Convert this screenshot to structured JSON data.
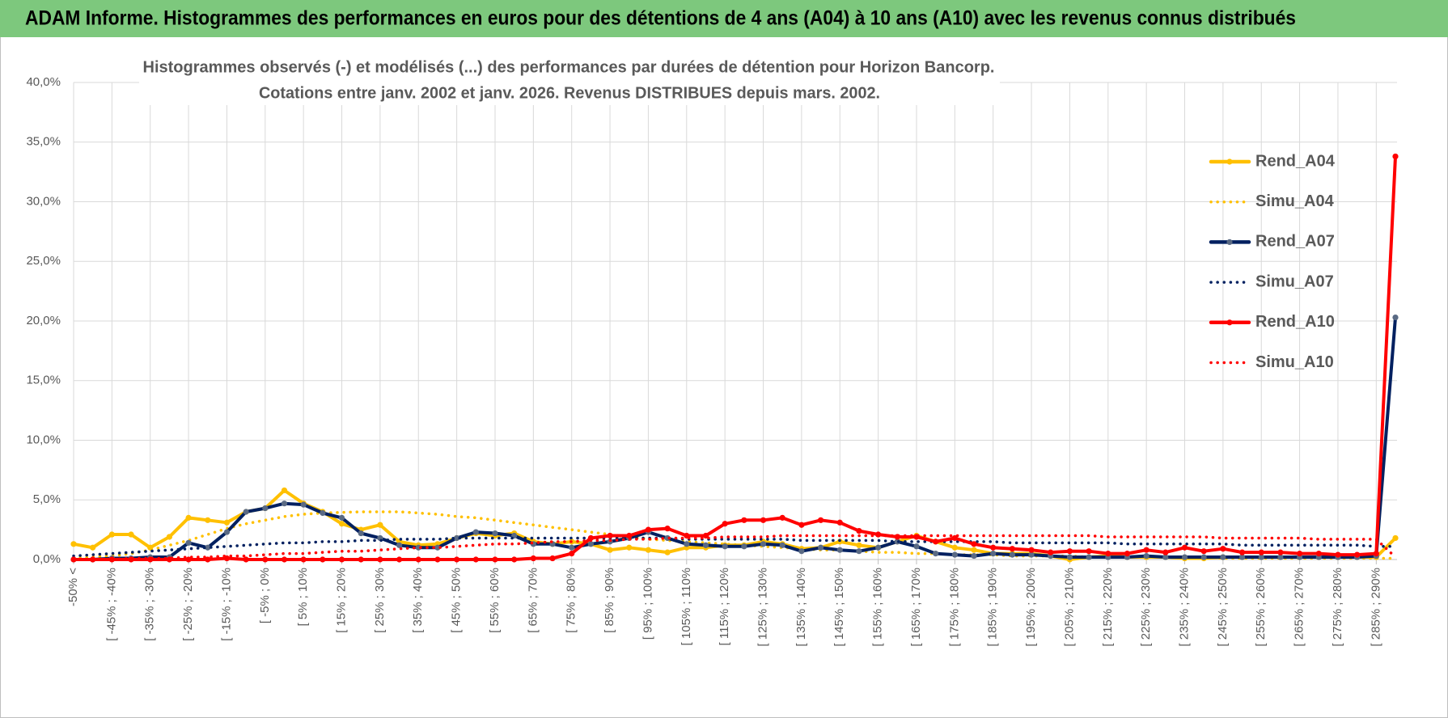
{
  "chart_data": {
    "type": "line",
    "title": "ADAM Informe. Histogrammes des performances en euros pour des détentions de 4 ans (A04) à 10 ans (A10) avec les revenus connus distribués",
    "subtitle": [
      "Histogrammes observés (-) et modélisés (...) des performances par durées de détention pour Horizon Bancorp.",
      "Cotations entre janv. 2002 et janv. 2026. Revenus DISTRIBUES depuis mars. 2002."
    ],
    "categories": [
      "-50% <",
      null,
      "[ -45% ; -40%",
      null,
      "[ -35% ; -30%",
      null,
      "[ -25% ; -20%",
      null,
      "[ -15% ; -10%",
      null,
      "[ -5% ; 0%",
      null,
      "[ 5% ; 10%",
      null,
      "[ 15% ; 20%",
      null,
      "[ 25% ; 30%",
      null,
      "[ 35% ; 40%",
      null,
      "[ 45% ; 50%",
      null,
      "[ 55% ; 60%",
      null,
      "[ 65% ; 70%",
      null,
      "[ 75% ; 80%",
      null,
      "[ 85% ; 90%",
      null,
      "[ 95% ; 100%",
      null,
      "[ 105% ; 110%",
      null,
      "[ 115% ; 120%",
      null,
      "[ 125% ; 130%",
      null,
      "[ 135% ; 140%",
      null,
      "[ 145% ; 150%",
      null,
      "[ 155% ; 160%",
      null,
      "[ 165% ; 170%",
      null,
      "[ 175% ; 180%",
      null,
      "[ 185% ; 190%",
      null,
      "[ 195% ; 200%",
      null,
      "[ 205% ; 210%",
      null,
      "[ 215% ; 220%",
      null,
      "[ 225% ; 230%",
      null,
      "[ 235% ; 240%",
      null,
      "[ 245% ; 250%",
      null,
      "[ 255% ; 260%",
      null,
      "[ 265% ; 270%",
      null,
      "[ 275% ; 280%",
      null,
      "[ 285% ; 290%",
      null
    ],
    "series": [
      {
        "name": "Rend_A04",
        "color": "#ffc000",
        "style": "solid",
        "markers": true,
        "values": [
          1.3,
          1.0,
          2.1,
          2.1,
          1.0,
          1.9,
          3.5,
          3.3,
          3.1,
          4.0,
          4.3,
          5.8,
          4.7,
          4.0,
          3.0,
          2.5,
          2.9,
          1.5,
          1.2,
          1.3,
          1.8,
          2.2,
          2.0,
          2.2,
          1.5,
          1.3,
          1.5,
          1.3,
          0.8,
          1.0,
          0.8,
          0.6,
          1.0,
          1.0,
          1.2,
          1.2,
          1.5,
          1.3,
          0.9,
          1.0,
          1.5,
          1.2,
          1.0,
          1.5,
          2.0,
          1.5,
          1.0,
          0.8,
          0.5,
          0.5,
          0.5,
          0.3,
          0.0,
          0.2,
          0.3,
          0.2,
          0.2,
          0.2,
          0.1,
          0.1,
          0.2,
          0.2,
          0.2,
          0.2,
          0.2,
          0.2,
          0.2,
          0.2,
          0.2,
          1.8
        ]
      },
      {
        "name": "Simu_A04",
        "color": "#ffc000",
        "style": "dotted",
        "markers": false,
        "values": [
          0.1,
          0.2,
          0.3,
          0.5,
          0.8,
          1.2,
          1.6,
          2.1,
          2.6,
          3.0,
          3.3,
          3.6,
          3.8,
          3.9,
          3.95,
          4.0,
          4.0,
          4.0,
          3.9,
          3.8,
          3.6,
          3.5,
          3.3,
          3.1,
          2.9,
          2.7,
          2.5,
          2.3,
          2.1,
          1.9,
          1.7,
          1.6,
          1.5,
          1.4,
          1.3,
          1.2,
          1.1,
          1.0,
          0.9,
          0.8,
          0.8,
          0.7,
          0.6,
          0.6,
          0.5,
          0.5,
          0.4,
          0.4,
          0.4,
          0.3,
          0.3,
          0.3,
          0.3,
          0.2,
          0.2,
          0.2,
          0.2,
          0.2,
          0.2,
          0.2,
          0.1,
          0.1,
          0.1,
          0.1,
          0.1,
          0.1,
          0.1,
          0.1,
          0.1,
          0.1
        ]
      },
      {
        "name": "Rend_A07",
        "color": "#002060",
        "marker_color": "#5a6a84",
        "style": "solid",
        "markers": true,
        "values": [
          0,
          0,
          0.1,
          0.1,
          0.2,
          0.2,
          1.4,
          1.0,
          2.3,
          4.0,
          4.3,
          4.7,
          4.6,
          3.9,
          3.5,
          2.2,
          1.8,
          1.2,
          1.0,
          1.0,
          1.8,
          2.3,
          2.2,
          2.0,
          1.3,
          1.3,
          1.0,
          1.3,
          1.5,
          1.8,
          2.3,
          1.8,
          1.3,
          1.2,
          1.1,
          1.1,
          1.3,
          1.2,
          0.7,
          1.0,
          0.8,
          0.7,
          1.0,
          1.5,
          1.1,
          0.5,
          0.4,
          0.3,
          0.5,
          0.4,
          0.4,
          0.3,
          0.2,
          0.2,
          0.2,
          0.2,
          0.3,
          0.2,
          0.2,
          0.2,
          0.2,
          0.2,
          0.2,
          0.2,
          0.2,
          0.2,
          0.2,
          0.2,
          0.3,
          20.3
        ]
      },
      {
        "name": "Simu_A07",
        "color": "#002060",
        "style": "dotted",
        "markers": false,
        "values": [
          0.3,
          0.4,
          0.5,
          0.6,
          0.7,
          0.8,
          0.9,
          1.0,
          1.1,
          1.2,
          1.3,
          1.4,
          1.4,
          1.5,
          1.5,
          1.6,
          1.6,
          1.7,
          1.7,
          1.7,
          1.8,
          1.8,
          1.8,
          1.8,
          1.8,
          1.8,
          1.8,
          1.8,
          1.8,
          1.8,
          1.8,
          1.8,
          1.7,
          1.7,
          1.7,
          1.7,
          1.7,
          1.7,
          1.6,
          1.6,
          1.6,
          1.6,
          1.6,
          1.5,
          1.5,
          1.5,
          1.5,
          1.5,
          1.5,
          1.4,
          1.4,
          1.4,
          1.4,
          1.4,
          1.4,
          1.3,
          1.3,
          1.3,
          1.3,
          1.3,
          1.3,
          1.2,
          1.2,
          1.2,
          1.2,
          1.2,
          1.2,
          1.2,
          1.1,
          1.1
        ]
      },
      {
        "name": "Rend_A10",
        "color": "#ff0000",
        "style": "solid",
        "markers": true,
        "values": [
          0,
          0,
          0,
          0,
          0,
          0,
          0,
          0,
          0.1,
          0,
          0,
          0,
          0,
          0,
          0,
          0,
          0,
          0,
          0,
          0,
          0,
          0,
          0,
          0,
          0.1,
          0.1,
          0.5,
          1.8,
          2.0,
          2.0,
          2.5,
          2.6,
          2.0,
          2.0,
          3.0,
          3.3,
          3.3,
          3.5,
          2.9,
          3.3,
          3.1,
          2.4,
          2.1,
          1.9,
          1.9,
          1.5,
          1.8,
          1.3,
          1.0,
          0.9,
          0.8,
          0.6,
          0.7,
          0.7,
          0.5,
          0.5,
          0.8,
          0.6,
          1.0,
          0.7,
          0.9,
          0.6,
          0.6,
          0.6,
          0.5,
          0.5,
          0.4,
          0.4,
          0.5,
          33.8
        ]
      },
      {
        "name": "Simu_A10",
        "color": "#ff0000",
        "style": "dotted",
        "markers": false,
        "values": [
          0,
          0,
          0,
          0.1,
          0.1,
          0.1,
          0.2,
          0.2,
          0.3,
          0.3,
          0.4,
          0.5,
          0.5,
          0.6,
          0.7,
          0.7,
          0.8,
          0.9,
          1.0,
          1.0,
          1.1,
          1.2,
          1.3,
          1.3,
          1.4,
          1.5,
          1.5,
          1.6,
          1.6,
          1.7,
          1.7,
          1.8,
          1.8,
          1.8,
          1.9,
          1.9,
          1.9,
          2.0,
          2.0,
          2.0,
          2.0,
          2.0,
          2.0,
          2.0,
          2.0,
          2.0,
          2.0,
          2.0,
          2.0,
          2.0,
          2.0,
          2.0,
          2.0,
          2.0,
          1.9,
          1.9,
          1.9,
          1.9,
          1.9,
          1.9,
          1.8,
          1.8,
          1.8,
          1.8,
          1.8,
          1.7,
          1.7,
          1.7,
          1.7,
          0.2
        ]
      }
    ],
    "ylim": [
      0,
      40
    ],
    "yticks": [
      {
        "value": 0,
        "label": "0,0%"
      },
      {
        "value": 5,
        "label": "5,0%"
      },
      {
        "value": 10,
        "label": "10,0%"
      },
      {
        "value": 15,
        "label": "15,0%"
      },
      {
        "value": 20,
        "label": "20,0%"
      },
      {
        "value": 25,
        "label": "25,0%"
      },
      {
        "value": 30,
        "label": "30,0%"
      },
      {
        "value": 35,
        "label": "35,0%"
      },
      {
        "value": 40,
        "label": "40,0%"
      }
    ],
    "grid": true,
    "legend": "right",
    "banner_color": "#7dc87d"
  }
}
